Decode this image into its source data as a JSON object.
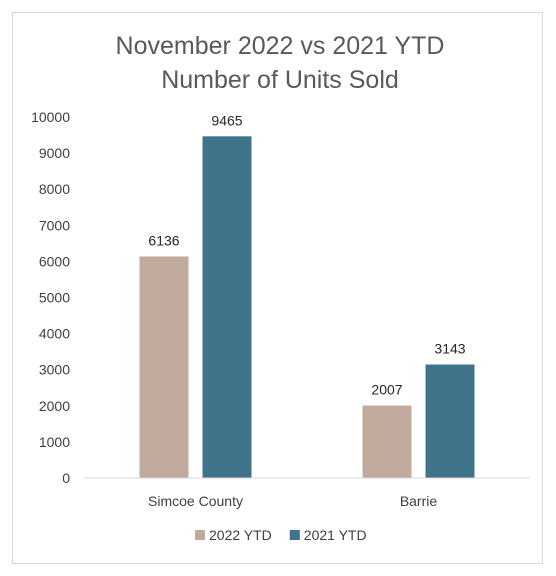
{
  "chart_data": {
    "type": "bar",
    "title": "November 2022 vs 2021 YTD",
    "subtitle": "Number of Units Sold",
    "categories": [
      "Simcoe County",
      "Barrie"
    ],
    "series": [
      {
        "name": "2022 YTD",
        "values": [
          6136,
          2007
        ],
        "color": "#c0aa9c"
      },
      {
        "name": "2021 YTD",
        "values": [
          9465,
          3143
        ],
        "color": "#3e738a"
      }
    ],
    "ylim": [
      0,
      10000
    ],
    "yticks": [
      0,
      1000,
      2000,
      3000,
      4000,
      5000,
      6000,
      7000,
      8000,
      9000,
      10000
    ],
    "grid": false,
    "legend_position": "bottom"
  }
}
